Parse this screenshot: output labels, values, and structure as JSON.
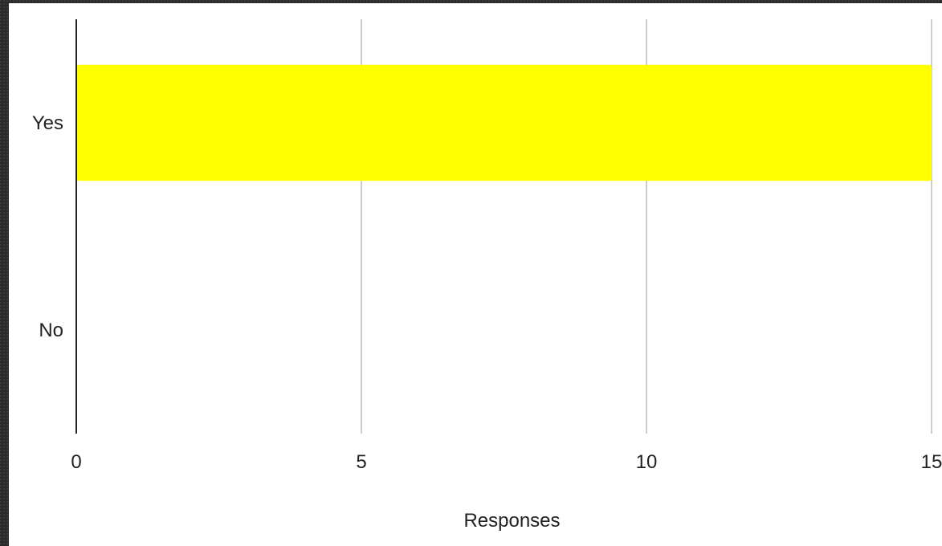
{
  "chart_data": {
    "type": "bar",
    "orientation": "horizontal",
    "categories": [
      "Yes",
      "No"
    ],
    "values": [
      15,
      0
    ],
    "xlabel": "Responses",
    "ylabel": "",
    "xlim": [
      0,
      15
    ],
    "xticks": [
      "0",
      "5",
      "10",
      "15"
    ],
    "grid": "vertical",
    "bar_color": "#ffff00"
  }
}
